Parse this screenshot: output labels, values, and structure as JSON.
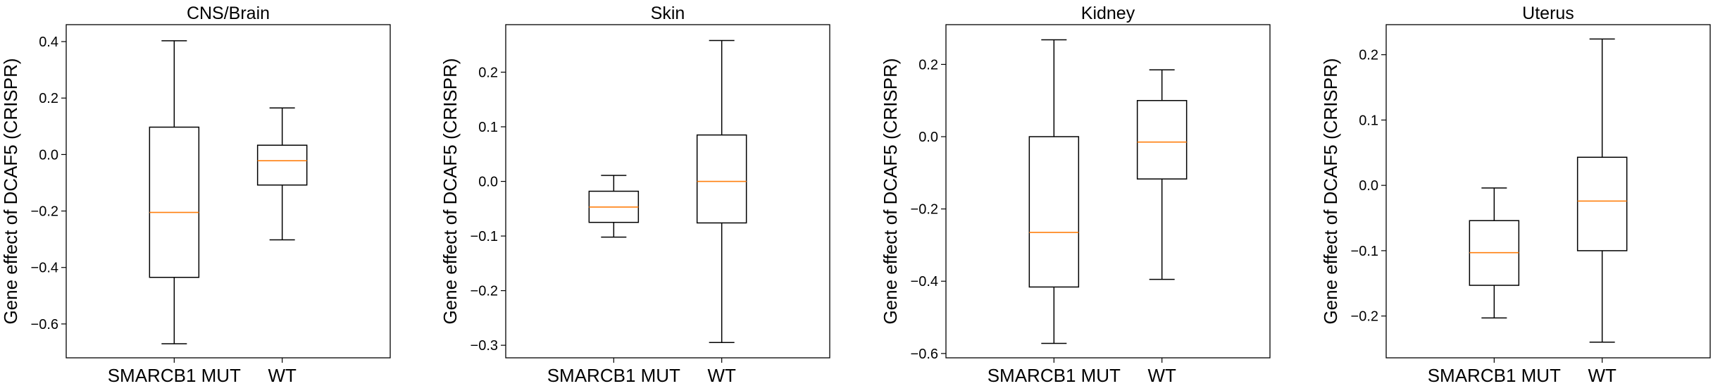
{
  "colors": {
    "median": "#ff7f0e",
    "box": "#000000",
    "axes": "#000000"
  },
  "chart_data": [
    {
      "type": "box",
      "title": "CNS/Brain",
      "ylabel": "Gene effect of DCAF5 (CRISPR)",
      "categories": [
        "SMARCB1 MUT",
        "WT"
      ],
      "ylim": [
        -0.72,
        0.46
      ],
      "yticks": [
        -0.6,
        -0.4,
        -0.2,
        0.0,
        0.2,
        0.4
      ],
      "yticklabels": [
        "−0.6",
        "−0.4",
        "−0.2",
        "0.0",
        "0.2",
        "0.4"
      ],
      "boxes": [
        {
          "category": "SMARCB1 MUT",
          "whislo": -0.67,
          "q1": -0.435,
          "median": -0.205,
          "q3": 0.097,
          "whishi": 0.403
        },
        {
          "category": "WT",
          "whislo": -0.302,
          "q1": -0.108,
          "median": -0.022,
          "q3": 0.033,
          "whishi": 0.165
        }
      ]
    },
    {
      "type": "box",
      "title": "Skin",
      "ylabel": "Gene effect of DCAF5 (CRISPR)",
      "categories": [
        "SMARCB1 MUT",
        "WT"
      ],
      "ylim": [
        -0.323,
        0.287
      ],
      "yticks": [
        -0.3,
        -0.2,
        -0.1,
        0.0,
        0.1,
        0.2
      ],
      "yticklabels": [
        "−0.3",
        "−0.2",
        "−0.1",
        "0.0",
        "0.1",
        "0.2"
      ],
      "boxes": [
        {
          "category": "SMARCB1 MUT",
          "whislo": -0.102,
          "q1": -0.075,
          "median": -0.047,
          "q3": -0.018,
          "whishi": 0.011
        },
        {
          "category": "WT",
          "whislo": -0.295,
          "q1": -0.076,
          "median": 0.0,
          "q3": 0.085,
          "whishi": 0.258
        }
      ]
    },
    {
      "type": "box",
      "title": "Kidney",
      "ylabel": "Gene effect of DCAF5 (CRISPR)",
      "categories": [
        "SMARCB1 MUT",
        "WT"
      ],
      "ylim": [
        -0.612,
        0.31
      ],
      "yticks": [
        -0.6,
        -0.4,
        -0.2,
        0.0,
        0.2
      ],
      "yticklabels": [
        "−0.6",
        "−0.4",
        "−0.2",
        "0.0",
        "0.2"
      ],
      "boxes": [
        {
          "category": "SMARCB1 MUT",
          "whislo": -0.572,
          "q1": -0.416,
          "median": -0.265,
          "q3": 0.0,
          "whishi": 0.268
        },
        {
          "category": "WT",
          "whislo": -0.395,
          "q1": -0.117,
          "median": -0.015,
          "q3": 0.1,
          "whishi": 0.185
        }
      ]
    },
    {
      "type": "box",
      "title": "Uterus",
      "ylabel": "Gene effect of DCAF5 (CRISPR)",
      "categories": [
        "SMARCB1 MUT",
        "WT"
      ],
      "ylim": [
        -0.264,
        0.246
      ],
      "yticks": [
        -0.2,
        -0.1,
        0.0,
        0.1,
        0.2
      ],
      "yticklabels": [
        "−0.2",
        "−0.1",
        "0.0",
        "0.1",
        "0.2"
      ],
      "boxes": [
        {
          "category": "SMARCB1 MUT",
          "whislo": -0.203,
          "q1": -0.153,
          "median": -0.103,
          "q3": -0.054,
          "whishi": -0.004
        },
        {
          "category": "WT",
          "whislo": -0.24,
          "q1": -0.1,
          "median": -0.024,
          "q3": 0.043,
          "whishi": 0.224
        }
      ]
    }
  ]
}
